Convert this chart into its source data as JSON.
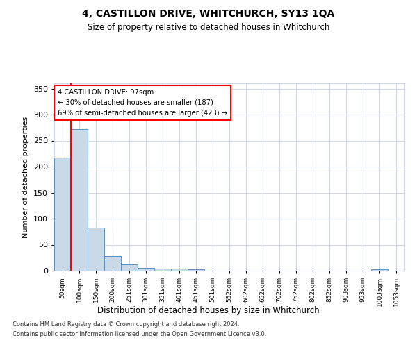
{
  "title": "4, CASTILLON DRIVE, WHITCHURCH, SY13 1QA",
  "subtitle": "Size of property relative to detached houses in Whitchurch",
  "xlabel": "Distribution of detached houses by size in Whitchurch",
  "ylabel": "Number of detached properties",
  "footnote1": "Contains HM Land Registry data © Crown copyright and database right 2024.",
  "footnote2": "Contains public sector information licensed under the Open Government Licence v3.0.",
  "bar_labels": [
    "50sqm",
    "100sqm",
    "150sqm",
    "200sqm",
    "251sqm",
    "301sqm",
    "351sqm",
    "401sqm",
    "451sqm",
    "501sqm",
    "552sqm",
    "602sqm",
    "652sqm",
    "702sqm",
    "752sqm",
    "802sqm",
    "852sqm",
    "903sqm",
    "953sqm",
    "1003sqm",
    "1053sqm"
  ],
  "bar_values": [
    218,
    272,
    83,
    28,
    12,
    5,
    4,
    4,
    3,
    0,
    0,
    0,
    0,
    0,
    0,
    0,
    0,
    0,
    0,
    3,
    0
  ],
  "bar_color": "#c9d9e8",
  "bar_edge_color": "#5b8db8",
  "annotation_title": "4 CASTILLON DRIVE: 97sqm",
  "annotation_line2": "← 30% of detached houses are smaller (187)",
  "annotation_line3": "69% of semi-detached houses are larger (423) →",
  "annotation_box_color": "white",
  "annotation_box_edge": "red",
  "red_line_color": "red",
  "ylim": [
    0,
    360
  ],
  "yticks": [
    0,
    50,
    100,
    150,
    200,
    250,
    300,
    350
  ],
  "grid_color": "#d0d8e8",
  "background_color": "white"
}
